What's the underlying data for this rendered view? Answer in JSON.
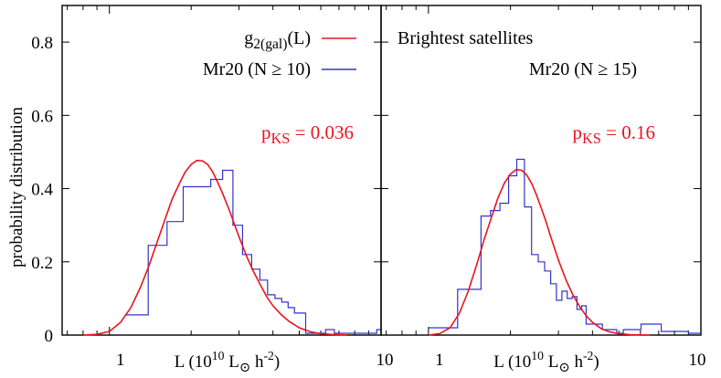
{
  "chart_data": {
    "type": "line",
    "ylabel": "probability distribution",
    "ylim": [
      0,
      0.9
    ],
    "xscale": "log",
    "xlim": [
      0.67,
      10
    ],
    "colors": {
      "model": "#e8141e",
      "data": "#3333cc",
      "axis": "#000000"
    },
    "yticks": [
      {
        "v": 0,
        "label": "0"
      },
      {
        "v": 0.2,
        "label": "0.2"
      },
      {
        "v": 0.4,
        "label": "0.4"
      },
      {
        "v": 0.6,
        "label": "0.6"
      },
      {
        "v": 0.8,
        "label": "0.8"
      }
    ],
    "panels": [
      {
        "xlabel": {
          "pre": "L (10",
          "exp": "10",
          "mid": " L",
          "sun": "⊙",
          "post": " h",
          "exp2": "-2",
          "close": ")"
        },
        "xticks": [
          {
            "v": 1,
            "label": "1"
          },
          {
            "v": 10,
            "label": "10"
          }
        ],
        "title": "",
        "legend": [
          {
            "main": "g",
            "sub": "2(gal)",
            "rest": "(L)",
            "color": "#e8141e"
          },
          {
            "main": "Mr20 (N ≥ 10)",
            "sub": "",
            "rest": "",
            "color": "#3333cc"
          }
        ],
        "annotation": {
          "main": "p",
          "sub": "KS",
          "rest": " = 0.036"
        },
        "model_curve": {
          "x": [
            0.8,
            0.9,
            1.0,
            1.1,
            1.2,
            1.3,
            1.4,
            1.5,
            1.6,
            1.7,
            1.8,
            1.9,
            2.0,
            2.1,
            2.2,
            2.3,
            2.4,
            2.5,
            2.6,
            2.7,
            2.8,
            2.9,
            3.0,
            3.2,
            3.4,
            3.6,
            3.8,
            4.0,
            4.3,
            4.6,
            5.0,
            5.5,
            6.0,
            6.5,
            7.0,
            7.5
          ],
          "y": [
            0.0,
            0.002,
            0.01,
            0.035,
            0.075,
            0.13,
            0.19,
            0.255,
            0.315,
            0.37,
            0.41,
            0.445,
            0.466,
            0.477,
            0.476,
            0.466,
            0.446,
            0.418,
            0.39,
            0.36,
            0.33,
            0.298,
            0.268,
            0.215,
            0.172,
            0.136,
            0.104,
            0.08,
            0.055,
            0.037,
            0.02,
            0.009,
            0.004,
            0.002,
            0.001,
            0.0
          ]
        },
        "histogram": {
          "edges": [
            1.14,
            1.39,
            1.63,
            1.87,
            2.12,
            2.36,
            2.61,
            2.85,
            3.09,
            3.34,
            3.58,
            3.82,
            4.07,
            4.31,
            4.55,
            4.8,
            5.04,
            5.28,
            6.25,
            6.73,
            7.7,
            8.67,
            9.64,
            10.0
          ],
          "values": [
            0.055,
            0.245,
            0.31,
            0.405,
            0.405,
            0.425,
            0.45,
            0.3,
            0.22,
            0.18,
            0.15,
            0.11,
            0.1,
            0.09,
            0.075,
            0.06,
            0.06,
            0.005,
            0.015,
            0.005,
            0.005,
            0.005,
            0.015
          ]
        }
      },
      {
        "xlabel": {
          "pre": "L (10",
          "exp": "10",
          "mid": " L",
          "sun": "⊙",
          "post": " h",
          "exp2": "-2",
          "close": ")"
        },
        "xticks": [
          {
            "v": 1,
            "label": "1"
          },
          {
            "v": 10,
            "label": "10"
          }
        ],
        "title": "Brightest satellites",
        "legend": [
          {
            "main": "Mr20 (N ≥ 15)",
            "sub": "",
            "rest": "",
            "color": ""
          }
        ],
        "annotation": {
          "main": "p",
          "sub": "KS",
          "rest": " = 0.16"
        },
        "model_curve": {
          "x": [
            1.0,
            1.1,
            1.2,
            1.3,
            1.4,
            1.5,
            1.6,
            1.7,
            1.8,
            1.9,
            2.0,
            2.1,
            2.2,
            2.3,
            2.4,
            2.5,
            2.6,
            2.7,
            2.8,
            2.9,
            3.0,
            3.2,
            3.4,
            3.6,
            3.8,
            4.0,
            4.3,
            4.6,
            5.0,
            5.5,
            6.0,
            6.5
          ],
          "y": [
            0.0,
            0.004,
            0.02,
            0.06,
            0.12,
            0.19,
            0.26,
            0.32,
            0.375,
            0.415,
            0.44,
            0.452,
            0.45,
            0.436,
            0.412,
            0.38,
            0.345,
            0.31,
            0.272,
            0.238,
            0.205,
            0.15,
            0.108,
            0.076,
            0.052,
            0.035,
            0.018,
            0.009,
            0.004,
            0.001,
            0.0005,
            0.0
          ]
        },
        "histogram": {
          "edges": [
            1.0,
            1.28,
            1.56,
            1.69,
            1.83,
            1.97,
            2.11,
            2.25,
            2.39,
            2.53,
            2.67,
            2.81,
            2.95,
            3.09,
            3.23,
            3.37,
            3.51,
            3.65,
            3.79,
            4.35,
            4.91,
            5.19,
            6.03,
            7.15,
            9.0,
            10.0
          ],
          "values": [
            0.02,
            0.125,
            0.325,
            0.34,
            0.36,
            0.435,
            0.48,
            0.35,
            0.22,
            0.2,
            0.175,
            0.14,
            0.095,
            0.12,
            0.1,
            0.105,
            0.07,
            0.08,
            0.03,
            0.015,
            0.005,
            0.015,
            0.03,
            0.01,
            0.005
          ]
        }
      }
    ]
  }
}
